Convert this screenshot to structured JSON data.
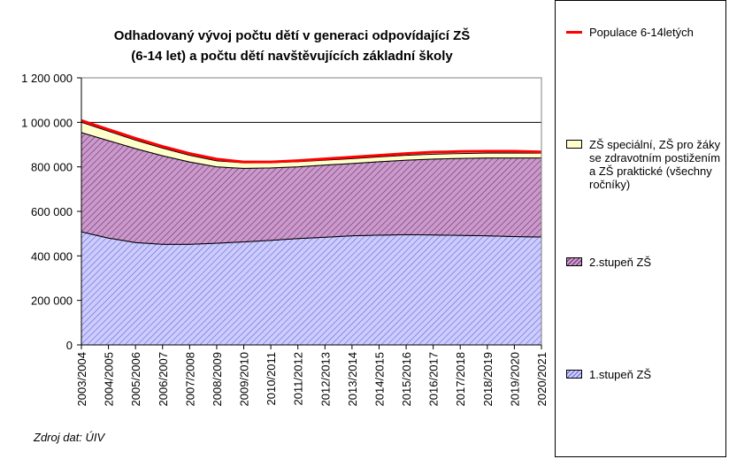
{
  "chart_data": {
    "type": "area",
    "title": [
      "Odhadovaný vývoj počtu dětí v generaci odpovídající ZŠ",
      "(6-14 let) a počtu dětí navštěvujících základní školy"
    ],
    "source": "Zdroj dat: ÚIV",
    "categories": [
      "2003/2004",
      "2004/2005",
      "2005/2006",
      "2006/2007",
      "2007/2008",
      "2008/2009",
      "2009/2010",
      "2010/2011",
      "2011/2012",
      "2012/2013",
      "2013/2014",
      "2014/2015",
      "2015/2016",
      "2016/2017",
      "2017/2018",
      "2018/2019",
      "2019/2020",
      "2020/2021"
    ],
    "series": [
      {
        "name": "1.stupeň ZŠ",
        "type": "area",
        "color": "#ccccff",
        "values": [
          508000,
          480000,
          460000,
          452000,
          452000,
          457000,
          463000,
          470000,
          478000,
          484000,
          490000,
          493000,
          495000,
          494000,
          492000,
          490000,
          487000,
          485000
        ]
      },
      {
        "name": "2.stupeň ZŠ",
        "type": "area",
        "color": "#cc99cc",
        "values": [
          446000,
          438000,
          422000,
          398000,
          370000,
          343000,
          330000,
          325000,
          322000,
          324000,
          325000,
          330000,
          335000,
          341000,
          346000,
          350000,
          353000,
          355000
        ]
      },
      {
        "name": "ZŠ speciální, ZŠ pro žáky se zdravotním postižením a ZŠ praktické (všechny ročníky)",
        "type": "area",
        "color": "#ffffcc",
        "values": [
          46000,
          42000,
          38000,
          34000,
          30000,
          27000,
          25000,
          24000,
          23000,
          22000,
          22000,
          22000,
          22000,
          22000,
          22000,
          22000,
          22000,
          22000
        ]
      },
      {
        "name": "Populace 6-14letých",
        "type": "line",
        "color": "#ff0000",
        "values": [
          1008000,
          968000,
          928000,
          892000,
          860000,
          835000,
          822000,
          822000,
          828000,
          836000,
          844000,
          852000,
          860000,
          866000,
          869000,
          870000,
          870000,
          867000
        ]
      }
    ],
    "ylim": [
      0,
      1200000
    ],
    "yticks": [
      0,
      {
        "value": 200000,
        "label": "200 000"
      },
      {
        "value": 400000,
        "label": "400 000"
      },
      {
        "value": 600000,
        "label": "600 000"
      },
      {
        "value": 800000,
        "label": "800 000"
      },
      {
        "value": 1000000,
        "label": "1 000 000"
      },
      {
        "value": 1200000,
        "label": "1 200 000"
      }
    ],
    "grid": true,
    "legend": "right"
  }
}
